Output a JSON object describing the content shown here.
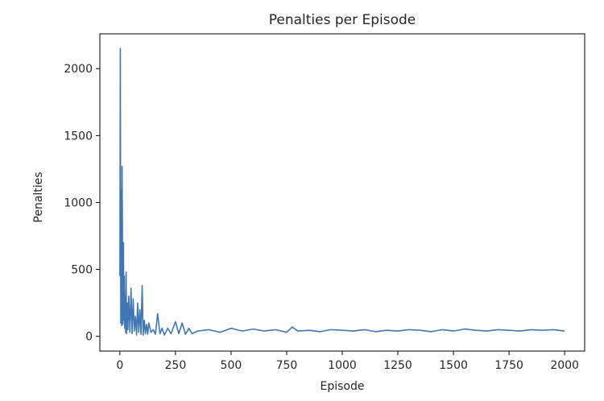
{
  "chart_data": {
    "type": "line",
    "title": "Penalties per Episode",
    "xlabel": "Episode",
    "ylabel": "Penalties",
    "xlim": [
      -90,
      2090
    ],
    "ylim": [
      -110,
      2260
    ],
    "xticks": [
      0,
      250,
      500,
      750,
      1000,
      1250,
      1500,
      1750,
      2000
    ],
    "xtick_labels": [
      "0",
      "250",
      "500",
      "750",
      "1000",
      "1250",
      "1500",
      "1750",
      "2000"
    ],
    "yticks": [
      0,
      500,
      1000,
      1500,
      2000
    ],
    "ytick_labels": [
      "0",
      "500",
      "1000",
      "1500",
      "2000"
    ],
    "grid": false,
    "legend": "none",
    "series": [
      {
        "color": "#3f77b4",
        "x": [
          0,
          2,
          4,
          6,
          8,
          10,
          12,
          14,
          16,
          18,
          20,
          22,
          24,
          26,
          28,
          30,
          33,
          36,
          40,
          45,
          50,
          55,
          60,
          65,
          70,
          75,
          80,
          85,
          90,
          95,
          100,
          105,
          110,
          115,
          120,
          125,
          130,
          140,
          150,
          160,
          170,
          180,
          190,
          200,
          215,
          230,
          250,
          265,
          280,
          295,
          310,
          325,
          350,
          400,
          450,
          500,
          550,
          600,
          650,
          700,
          750,
          775,
          800,
          850,
          900,
          950,
          1000,
          1050,
          1100,
          1150,
          1200,
          1250,
          1300,
          1350,
          1400,
          1450,
          1500,
          1550,
          1600,
          1650,
          1700,
          1750,
          1800,
          1850,
          1900,
          1950,
          2000
        ],
        "y": [
          450,
          2150,
          100,
          1100,
          80,
          1270,
          600,
          90,
          700,
          120,
          450,
          60,
          300,
          30,
          480,
          20,
          250,
          50,
          300,
          30,
          360,
          20,
          280,
          40,
          150,
          10,
          250,
          30,
          200,
          15,
          380,
          10,
          120,
          20,
          90,
          15,
          100,
          30,
          50,
          15,
          170,
          20,
          60,
          10,
          60,
          20,
          110,
          20,
          100,
          15,
          60,
          20,
          40,
          50,
          30,
          60,
          40,
          55,
          40,
          50,
          30,
          70,
          40,
          45,
          35,
          50,
          45,
          40,
          50,
          35,
          45,
          40,
          50,
          45,
          35,
          50,
          40,
          55,
          45,
          40,
          50,
          45,
          40,
          50,
          45,
          50,
          40
        ]
      }
    ]
  }
}
